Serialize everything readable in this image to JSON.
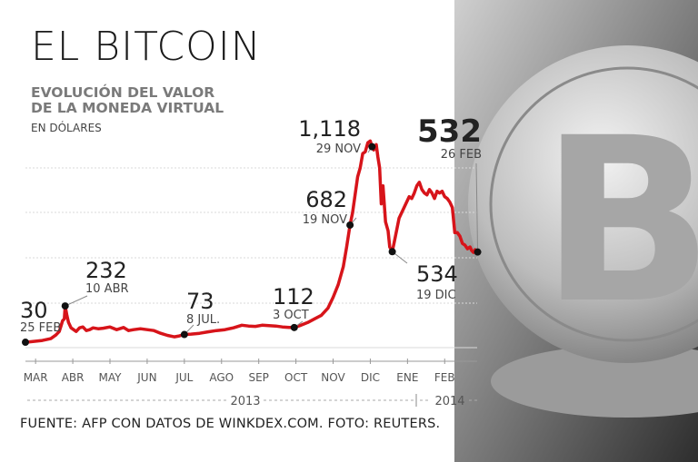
{
  "chart_data": {
    "type": "line",
    "title": "EL BITCOIN",
    "subtitle_lines": [
      "EVOLUCIÓN DEL VALOR",
      "DE LA MONEDA VIRTUAL"
    ],
    "unit": "EN DÓLARES",
    "xlabel": "",
    "ylabel": "",
    "ylim": [
      0,
      1200
    ],
    "grid": true,
    "x_months": [
      "MAR",
      "ABR",
      "MAY",
      "JUN",
      "JUL",
      "AGO",
      "SEP",
      "OCT",
      "NOV",
      "DIC",
      "ENE",
      "FEB"
    ],
    "years": [
      "2013",
      "2014"
    ],
    "series": [
      {
        "values": [
          [
            0,
            30
          ],
          [
            0.5,
            35
          ],
          [
            1,
            40
          ],
          [
            1.5,
            50
          ],
          [
            1.8,
            70
          ],
          [
            2.0,
            90
          ],
          [
            2.1,
            120
          ],
          [
            2.2,
            150
          ],
          [
            2.3,
            160
          ],
          [
            2.35,
            232
          ],
          [
            2.45,
            180
          ],
          [
            2.55,
            140
          ],
          [
            2.7,
            110
          ],
          [
            2.85,
            100
          ],
          [
            3.0,
            90
          ],
          [
            3.2,
            110
          ],
          [
            3.4,
            115
          ],
          [
            3.6,
            95
          ],
          [
            3.8,
            100
          ],
          [
            4.0,
            110
          ],
          [
            4.3,
            105
          ],
          [
            4.6,
            108
          ],
          [
            5.0,
            115
          ],
          [
            5.4,
            100
          ],
          [
            5.8,
            112
          ],
          [
            6.1,
            95
          ],
          [
            6.4,
            100
          ],
          [
            6.8,
            105
          ],
          [
            7.2,
            100
          ],
          [
            7.6,
            95
          ],
          [
            8.0,
            80
          ],
          [
            8.4,
            68
          ],
          [
            8.8,
            60
          ],
          [
            9.1,
            65
          ],
          [
            9.4,
            73
          ],
          [
            9.8,
            75
          ],
          [
            10.3,
            80
          ],
          [
            10.8,
            88
          ],
          [
            11.3,
            95
          ],
          [
            11.8,
            100
          ],
          [
            12.3,
            110
          ],
          [
            12.8,
            125
          ],
          [
            13.2,
            120
          ],
          [
            13.6,
            118
          ],
          [
            14.0,
            125
          ],
          [
            14.4,
            122
          ],
          [
            14.8,
            120
          ],
          [
            15.2,
            115
          ],
          [
            15.6,
            112
          ],
          [
            15.9,
            112
          ],
          [
            16.3,
            125
          ],
          [
            16.7,
            140
          ],
          [
            17.1,
            160
          ],
          [
            17.5,
            180
          ],
          [
            17.9,
            220
          ],
          [
            18.2,
            280
          ],
          [
            18.5,
            350
          ],
          [
            18.8,
            450
          ],
          [
            19.0,
            560
          ],
          [
            19.2,
            682
          ],
          [
            19.35,
            750
          ],
          [
            19.5,
            850
          ],
          [
            19.65,
            950
          ],
          [
            19.8,
            1000
          ],
          [
            19.95,
            1080
          ],
          [
            20.1,
            1090
          ],
          [
            20.25,
            1140
          ],
          [
            20.4,
            1150
          ],
          [
            20.5,
            1118
          ],
          [
            20.6,
            1100
          ],
          [
            20.75,
            1130
          ],
          [
            20.85,
            1060
          ],
          [
            20.95,
            1000
          ],
          [
            21.05,
            800
          ],
          [
            21.15,
            900
          ],
          [
            21.3,
            700
          ],
          [
            21.45,
            650
          ],
          [
            21.55,
            560
          ],
          [
            21.7,
            534
          ],
          [
            21.8,
            580
          ],
          [
            21.95,
            650
          ],
          [
            22.1,
            720
          ],
          [
            22.3,
            760
          ],
          [
            22.5,
            800
          ],
          [
            22.7,
            840
          ],
          [
            22.85,
            830
          ],
          [
            23.0,
            860
          ],
          [
            23.15,
            900
          ],
          [
            23.3,
            920
          ],
          [
            23.45,
            880
          ],
          [
            23.6,
            860
          ],
          [
            23.75,
            850
          ],
          [
            23.9,
            880
          ],
          [
            24.05,
            860
          ],
          [
            24.2,
            830
          ],
          [
            24.35,
            870
          ],
          [
            24.5,
            860
          ],
          [
            24.65,
            870
          ],
          [
            24.8,
            840
          ],
          [
            24.95,
            830
          ],
          [
            25.1,
            810
          ],
          [
            25.25,
            780
          ],
          [
            25.4,
            640
          ],
          [
            25.55,
            640
          ],
          [
            25.7,
            620
          ],
          [
            25.85,
            580
          ],
          [
            26.0,
            570
          ],
          [
            26.15,
            550
          ],
          [
            26.3,
            560
          ],
          [
            26.4,
            540
          ],
          [
            26.5,
            530
          ],
          [
            26.6,
            545
          ],
          [
            26.75,
            532
          ]
        ]
      }
    ],
    "annotations": [
      {
        "value": "30",
        "date": "25 FEB",
        "x": 0,
        "y": 30
      },
      {
        "value": "232",
        "date": "10 ABR",
        "x": 2.35,
        "y": 232
      },
      {
        "value": "73",
        "date": "8 JUL.",
        "x": 9.4,
        "y": 73
      },
      {
        "value": "112",
        "date": "3 OCT",
        "x": 15.9,
        "y": 112
      },
      {
        "value": "682",
        "date": "19 NOV",
        "x": 19.2,
        "y": 682
      },
      {
        "value": "1,118",
        "date": "29 NOV",
        "x": 20.5,
        "y": 1118
      },
      {
        "value": "534",
        "date": "19 DIC",
        "x": 21.7,
        "y": 534
      },
      {
        "value": "532",
        "date": "26 FEB",
        "x": 26.75,
        "y": 532
      }
    ],
    "colors": {
      "line": "#d7141a",
      "marker": "#111111",
      "grid": "#d9d9d9"
    }
  },
  "source": "FUENTE: AFP CON DATOS DE  WINKDEX.COM. FOTO: REUTERS."
}
